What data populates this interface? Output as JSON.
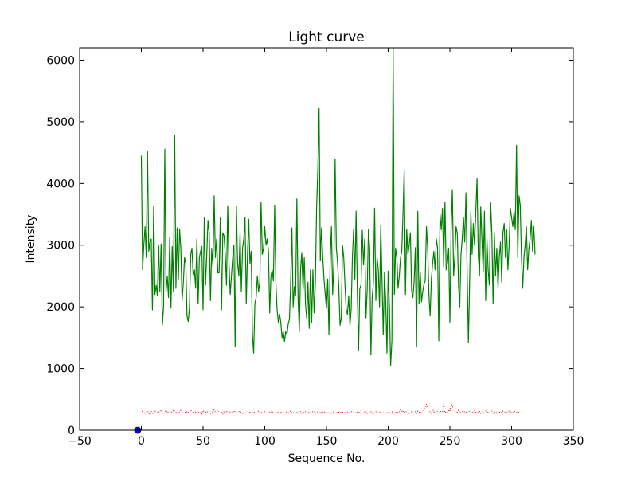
{
  "chart_data": {
    "type": "line",
    "title": "Light curve",
    "xlabel": "Sequence No.",
    "ylabel": "Intensity",
    "xlim": [
      -50,
      350
    ],
    "ylim": [
      0,
      6200
    ],
    "xticks": [
      -50,
      0,
      50,
      100,
      150,
      200,
      250,
      300,
      350
    ],
    "yticks": [
      0,
      1000,
      2000,
      3000,
      4000,
      5000,
      6000
    ],
    "grid": false,
    "legend": "none",
    "x_start": 0,
    "x_step": 1,
    "series": [
      {
        "style": "solid",
        "color": "#008000",
        "values": [
          4450,
          2600,
          3000,
          3300,
          2800,
          4520,
          2900,
          3050,
          3100,
          1950,
          3640,
          2200,
          2350,
          2180,
          3000,
          2250,
          3020,
          1700,
          2000,
          4560,
          2250,
          2500,
          2150,
          3120,
          1980,
          2980,
          2250,
          4780,
          2300,
          3280,
          2450,
          3250,
          2950,
          2100,
          2380,
          2800,
          2700,
          1850,
          1760,
          2000,
          2850,
          2950,
          2500,
          2600,
          2300,
          3100,
          2050,
          2800,
          2900,
          2980,
          1950,
          3450,
          2350,
          2850,
          3400,
          3200,
          2100,
          2950,
          2650,
          3800,
          2800,
          3100,
          2550,
          2550,
          3450,
          1950,
          3200,
          3150,
          2850,
          2350,
          3640,
          2700,
          2200,
          2500,
          2800,
          3000,
          1350,
          3640,
          2700,
          2500,
          3200,
          2250,
          2950,
          3100,
          3450,
          2050,
          2850,
          3420,
          2700,
          2900,
          1550,
          1250,
          2050,
          2150,
          2500,
          2250,
          2400,
          3700,
          2850,
          2950,
          3300,
          3000,
          3100,
          2900,
          1900,
          2500,
          2600,
          2420,
          3650,
          2400,
          1950,
          1750,
          1880,
          1750,
          1500,
          1600,
          1440,
          1600,
          1560,
          1720,
          1800,
          2400,
          3280,
          2000,
          2330,
          2180,
          3750,
          2130,
          1600,
          2600,
          2880,
          2270,
          2800,
          2050,
          1800,
          2400,
          1650,
          2600,
          1750,
          2600,
          1900,
          2400,
          3600,
          4220,
          5220,
          2750,
          3280,
          2800,
          2450,
          2200,
          1980,
          2450,
          1550,
          2750,
          3300,
          2200,
          2700,
          4400,
          2950,
          2720,
          2300,
          1700,
          1820,
          3000,
          2800,
          2350,
          1950,
          1880,
          2180,
          1700,
          1950,
          2800,
          3260,
          2450,
          3550,
          2250,
          1300,
          2300,
          2350,
          3240,
          2680,
          3100,
          1820,
          2280,
          3250,
          2950,
          1220,
          2150,
          2380,
          3600,
          2100,
          2800,
          2600,
          2000,
          3330,
          2440,
          1550,
          2550,
          2100,
          1250,
          2580,
          2000,
          1050,
          1450,
          6200,
          2200,
          2950,
          2800,
          2300,
          2500,
          2800,
          2900,
          3500,
          4220,
          2200,
          3260,
          2850,
          3000,
          3200,
          2250,
          2150,
          2400,
          2960,
          1350,
          3550,
          2050,
          2560,
          2080,
          2250,
          2370,
          2420,
          3300,
          2950,
          2200,
          1850,
          2450,
          2700,
          2900,
          2600,
          3100,
          2960,
          1450,
          3500,
          3250,
          3600,
          2650,
          3700,
          2600,
          2700,
          2950,
          1750,
          3260,
          3900,
          2500,
          2800,
          3300,
          3200,
          2350,
          2000,
          2850,
          3100,
          3450,
          3050,
          3850,
          2550,
          1420,
          2400,
          3550,
          2850,
          3350,
          3000,
          3550,
          4080,
          2850,
          2500,
          3620,
          3080,
          2560,
          3550,
          2100,
          3100,
          2600,
          2350,
          3700,
          3200,
          2050,
          3200,
          2500,
          2950,
          2300,
          2800,
          3050,
          2400,
          3200,
          3350,
          2800,
          3250,
          2600,
          3000,
          3600,
          3450,
          3300,
          3550,
          3250,
          4620,
          2800,
          3800,
          3650,
          2800,
          2300,
          2800,
          3000,
          3300,
          2600,
          2950,
          3100,
          3400,
          2900,
          3300,
          2850
        ]
      },
      {
        "style": "dotted",
        "color": "#ff0000",
        "values": [
          350,
          280,
          300,
          260,
          290,
          320,
          270,
          250,
          300,
          280,
          260,
          310,
          290,
          280,
          300,
          270,
          330,
          290,
          260,
          300,
          320,
          280,
          300,
          290,
          310,
          270,
          330,
          300,
          290,
          280,
          260,
          300,
          320,
          290,
          270,
          300,
          280,
          310,
          290,
          300,
          330,
          280,
          270,
          300,
          290,
          310,
          280,
          300,
          270,
          260,
          320,
          300,
          290,
          280,
          310,
          300,
          270,
          290,
          300,
          330,
          290,
          280,
          310,
          300,
          270,
          290,
          260,
          300,
          280,
          310,
          290,
          270,
          300,
          290,
          280,
          320,
          300,
          260,
          290,
          300,
          310,
          280,
          270,
          300,
          290,
          280,
          300,
          310,
          270,
          300,
          290,
          280,
          300,
          260,
          290,
          310,
          280,
          300,
          270,
          290,
          300,
          280,
          270,
          300,
          290,
          310,
          280,
          300,
          270,
          290,
          280,
          300,
          270,
          290,
          300,
          280,
          270,
          300,
          290,
          280,
          300,
          310,
          280,
          290,
          270,
          300,
          290,
          280,
          310,
          300,
          270,
          290,
          280,
          300,
          290,
          270,
          300,
          280,
          290,
          300,
          310,
          270,
          280,
          300,
          290,
          270,
          300,
          290,
          280,
          300,
          270,
          280,
          290,
          300,
          270,
          290,
          300,
          280,
          270,
          300,
          290,
          280,
          300,
          290,
          270,
          300,
          280,
          290,
          270,
          280,
          300,
          290,
          280,
          270,
          300,
          290,
          280,
          300,
          310,
          270,
          280,
          290,
          300,
          270,
          290,
          280,
          300,
          270,
          290,
          280,
          300,
          290,
          280,
          300,
          270,
          290,
          280,
          300,
          290,
          280,
          300,
          270,
          290,
          300,
          280,
          270,
          290,
          300,
          280,
          290,
          350,
          300,
          320,
          280,
          310,
          290,
          300,
          270,
          290,
          300,
          280,
          290,
          300,
          270,
          310,
          290,
          300,
          280,
          270,
          330,
          380,
          420,
          310,
          290,
          300,
          270,
          350,
          290,
          310,
          330,
          300,
          280,
          290,
          310,
          300,
          420,
          280,
          300,
          290,
          320,
          300,
          460,
          390,
          340,
          310,
          300,
          290,
          330,
          280,
          300,
          300,
          310,
          290,
          300,
          270,
          300,
          310,
          290,
          280,
          300,
          320,
          290,
          280,
          300,
          310,
          270,
          290,
          300,
          280,
          310,
          300,
          290,
          280,
          300,
          310,
          270,
          290,
          300,
          280,
          310,
          290,
          300,
          280,
          310,
          300,
          290,
          280,
          300,
          310,
          300,
          290,
          280,
          310,
          300,
          290,
          280,
          300,
          310
        ]
      },
      {
        "style": "marker",
        "color": "#0000ff",
        "points": [
          [
            -3,
            0
          ]
        ]
      }
    ]
  }
}
